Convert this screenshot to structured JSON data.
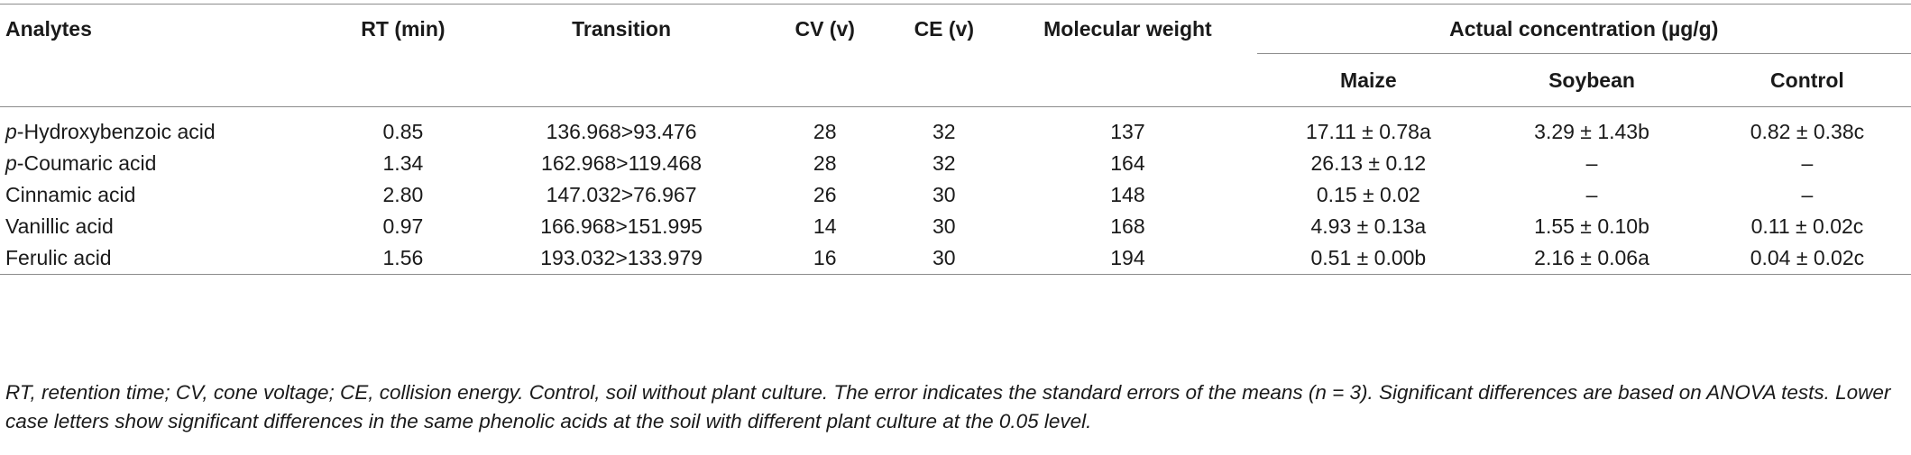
{
  "table": {
    "headers": {
      "analytes": "Analytes",
      "rt": "RT (min)",
      "transition": "Transition",
      "cv": "CV (v)",
      "ce": "CE (v)",
      "mw": "Molecular weight",
      "actual": "Actual concentration (µg/g)",
      "maize": "Maize",
      "soybean": "Soybean",
      "control": "Control"
    },
    "rows": [
      {
        "prefix": "p",
        "name": "-Hydroxybenzoic acid",
        "rt": "0.85",
        "transition": "136.968>93.476",
        "cv": "28",
        "ce": "32",
        "mw": "137",
        "maize": "17.11 ± 0.78a",
        "soybean": "3.29 ± 1.43b",
        "control": "0.82 ± 0.38c"
      },
      {
        "prefix": "p",
        "name": "-Coumaric acid",
        "rt": "1.34",
        "transition": "162.968>119.468",
        "cv": "28",
        "ce": "32",
        "mw": "164",
        "maize": "26.13 ± 0.12",
        "soybean": "–",
        "control": "–"
      },
      {
        "prefix": "",
        "name": "Cinnamic acid",
        "rt": "2.80",
        "transition": "147.032>76.967",
        "cv": "26",
        "ce": "30",
        "mw": "148",
        "maize": "0.15 ± 0.02",
        "soybean": "–",
        "control": "–"
      },
      {
        "prefix": "",
        "name": "Vanillic acid",
        "rt": "0.97",
        "transition": "166.968>151.995",
        "cv": "14",
        "ce": "30",
        "mw": "168",
        "maize": "4.93 ± 0.13a",
        "soybean": "1.55 ± 0.10b",
        "control": "0.11 ± 0.02c"
      },
      {
        "prefix": "",
        "name": "Ferulic acid",
        "rt": "1.56",
        "transition": "193.032>133.979",
        "cv": "16",
        "ce": "30",
        "mw": "194",
        "maize": "0.51 ± 0.00b",
        "soybean": "2.16 ± 0.06a",
        "control": "0.04 ± 0.02c"
      }
    ]
  },
  "footnote": "RT, retention time; CV, cone voltage; CE, collision energy. Control, soil without plant culture. The error indicates the standard errors of the means (n = 3). Significant differences are based on ANOVA tests. Lower case letters show significant differences in the same phenolic acids at the soil with different plant culture at the 0.05 level."
}
